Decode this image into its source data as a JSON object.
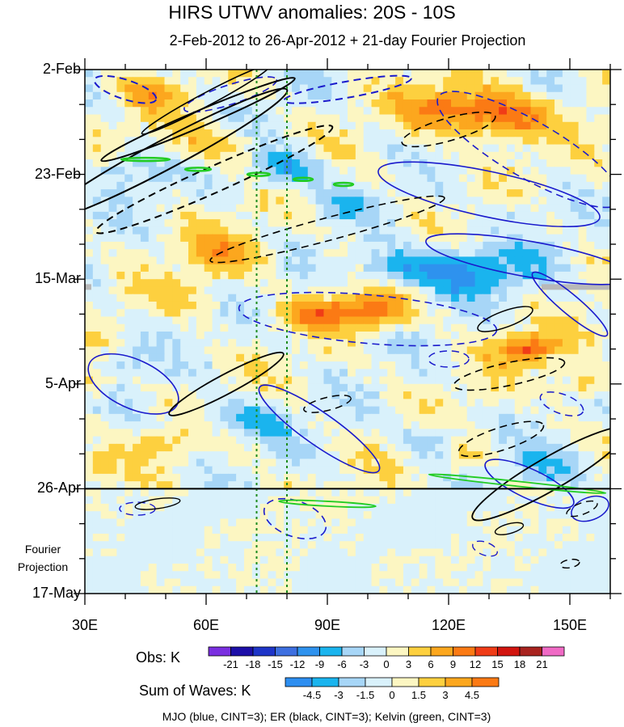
{
  "chart_data": {
    "type": "heatmap",
    "title": "HIRS UTWV anomalies: 20S - 10S",
    "subtitle": "2-Feb-2012 to 26-Apr-2012 + 21-day Fourier Projection",
    "x_axis": {
      "range": [
        30,
        160
      ],
      "ticks": [
        {
          "value": 30,
          "label": "30E"
        },
        {
          "value": 60,
          "label": "60E"
        },
        {
          "value": 90,
          "label": "90E"
        },
        {
          "value": 120,
          "label": "120E"
        },
        {
          "value": 150,
          "label": "150E"
        }
      ]
    },
    "y_axis": {
      "range_days": [
        0,
        105
      ],
      "ticks": [
        {
          "day": 0,
          "label": "2-Feb"
        },
        {
          "day": 21,
          "label": "23-Feb"
        },
        {
          "day": 42,
          "label": "15-Mar"
        },
        {
          "day": 63,
          "label": "5-Apr"
        },
        {
          "day": 84,
          "label": "26-Apr"
        },
        {
          "day": 105,
          "label": "17-May"
        }
      ],
      "observation_end_day": 84,
      "projection_label_line1": "Fourier",
      "projection_label_line2": "Projection"
    },
    "reference_longitudes": [
      72.5,
      80
    ],
    "obs_legend": {
      "title": "Obs: K",
      "levels": [
        "-21",
        "-18",
        "-15",
        "-12",
        "-9",
        "-6",
        "-3",
        "0",
        "3",
        "6",
        "9",
        "12",
        "15",
        "18",
        "21"
      ],
      "colors": [
        "#7a2fe0",
        "#1d0fa8",
        "#1e35c8",
        "#3d6fe0",
        "#2e92ee",
        "#1ab4ee",
        "#a7d6f7",
        "#d9f1fb",
        "#fcf6c2",
        "#fdd03f",
        "#fca71e",
        "#fb7a14",
        "#f03c17",
        "#d2150f",
        "#a8231f",
        "#f06ac5"
      ]
    },
    "waves_legend": {
      "title": "Sum of Waves: K",
      "levels": [
        "-4.5",
        "-3",
        "-1.5",
        "0",
        "1.5",
        "3",
        "4.5"
      ],
      "colors": [
        "#2d8ef0",
        "#1ab4ee",
        "#a7d6f7",
        "#d9f1fb",
        "#fcf6c2",
        "#fdd03f",
        "#fca71e",
        "#fb7a14"
      ]
    },
    "wave_filters": [
      {
        "name": "MJO",
        "color": "#1a1acc",
        "cint": 3
      },
      {
        "name": "ER",
        "color": "#000000",
        "cint": 3
      },
      {
        "name": "Kelvin",
        "color": "#22cc22",
        "cint": 3
      }
    ],
    "footer": "MJO (blue, CINT=3); ER (black, CINT=3); Kelvin (green, CINT=3)"
  }
}
